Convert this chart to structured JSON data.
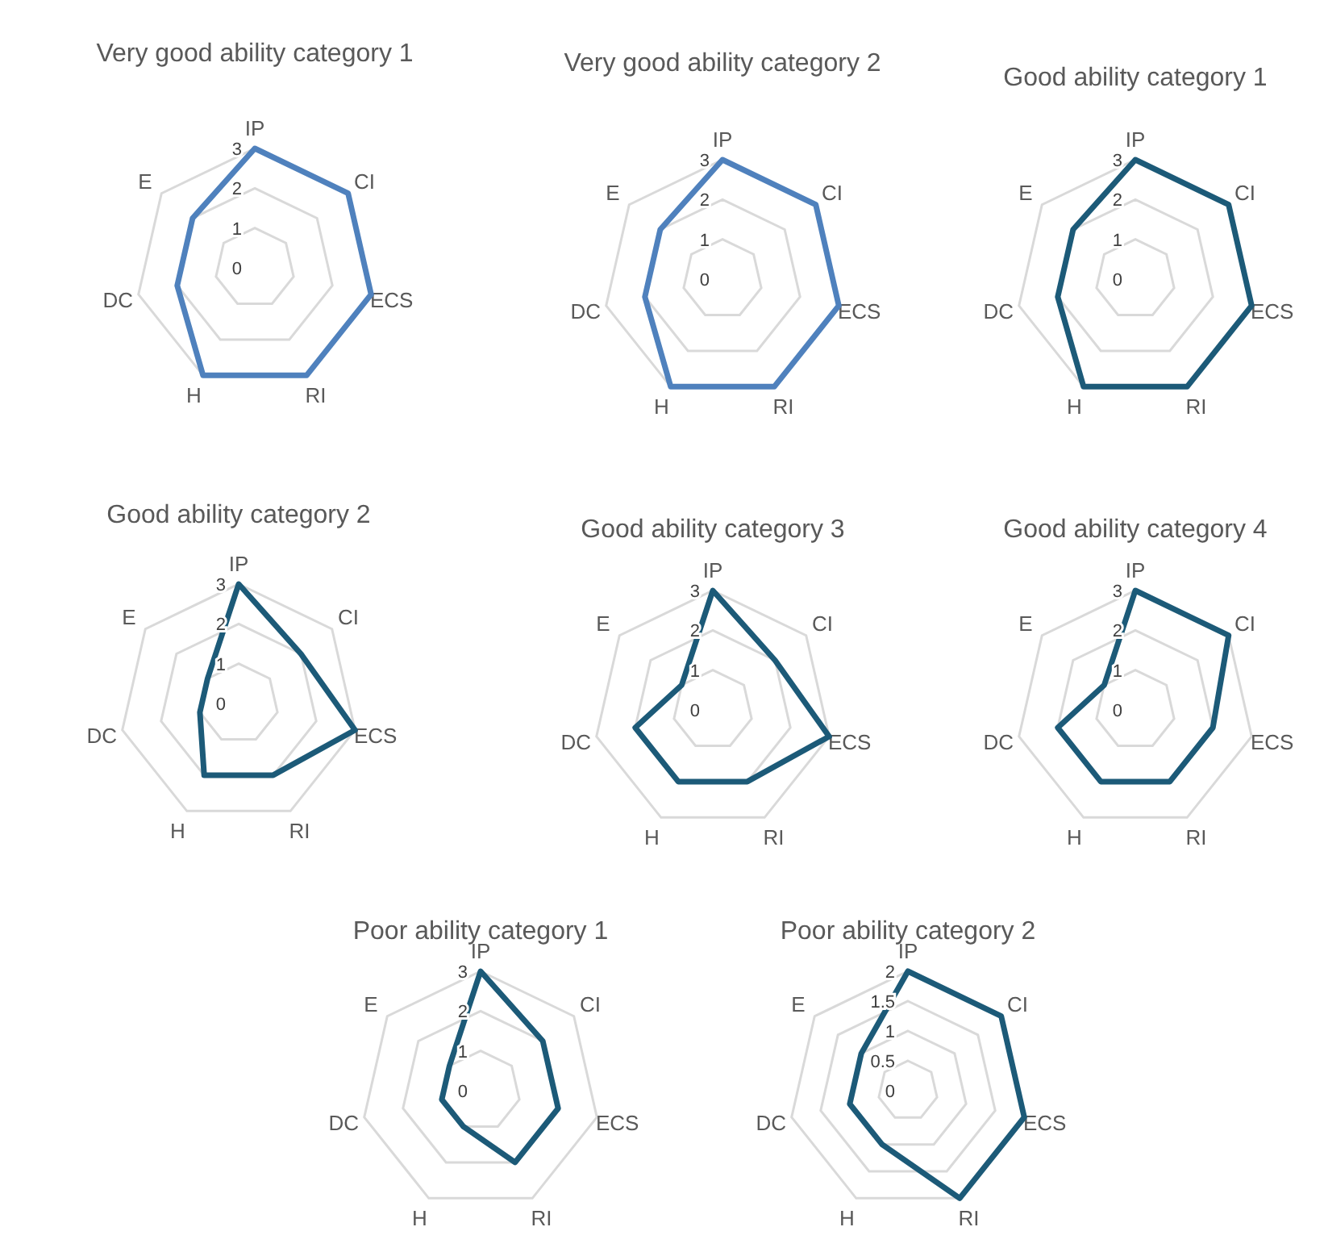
{
  "chart_data": [
    {
      "type": "radar",
      "title": "Very good ability category 1",
      "categories": [
        "IP",
        "CI",
        "ECS",
        "RI",
        "H",
        "DC",
        "E"
      ],
      "ylim": [
        0,
        3
      ],
      "yticks": [
        0,
        1,
        2,
        3
      ],
      "grid": true,
      "series": [
        {
          "color": "#4f81bd",
          "values": [
            3,
            3,
            3,
            3,
            3,
            2,
            2
          ]
        }
      ]
    },
    {
      "type": "radar",
      "title": "Very good ability category 2",
      "categories": [
        "IP",
        "CI",
        "ECS",
        "RI",
        "H",
        "DC",
        "E"
      ],
      "ylim": [
        0,
        3
      ],
      "yticks": [
        0,
        1,
        2,
        3
      ],
      "grid": true,
      "series": [
        {
          "color": "#4f81bd",
          "values": [
            3,
            3,
            3,
            3,
            3,
            2,
            2
          ]
        }
      ]
    },
    {
      "type": "radar",
      "title": "Good ability category  1",
      "categories": [
        "IP",
        "CI",
        "ECS",
        "RI",
        "H",
        "DC",
        "E"
      ],
      "ylim": [
        0,
        3
      ],
      "yticks": [
        0,
        1,
        2,
        3
      ],
      "grid": true,
      "series": [
        {
          "color": "#1c5a78",
          "values": [
            3,
            3,
            3,
            3,
            3,
            2,
            2
          ]
        }
      ]
    },
    {
      "type": "radar",
      "title": "Good ability category 2",
      "categories": [
        "IP",
        "CI",
        "ECS",
        "RI",
        "H",
        "DC",
        "E"
      ],
      "ylim": [
        0,
        3
      ],
      "yticks": [
        0,
        1,
        2,
        3
      ],
      "grid": true,
      "series": [
        {
          "color": "#1c5a78",
          "values": [
            3,
            2,
            3,
            2,
            2,
            1,
            1
          ]
        }
      ]
    },
    {
      "type": "radar",
      "title": "Good ability category 3",
      "categories": [
        "IP",
        "CI",
        "ECS",
        "RI",
        "H",
        "DC",
        "E"
      ],
      "ylim": [
        0,
        3
      ],
      "yticks": [
        0,
        1,
        2,
        3
      ],
      "grid": true,
      "series": [
        {
          "color": "#1c5a78",
          "values": [
            3,
            2,
            3,
            2,
            2,
            2,
            1
          ]
        }
      ]
    },
    {
      "type": "radar",
      "title": "Good ability category 4",
      "categories": [
        "IP",
        "CI",
        "ECS",
        "RI",
        "H",
        "DC",
        "E"
      ],
      "ylim": [
        0,
        3
      ],
      "yticks": [
        0,
        1,
        2,
        3
      ],
      "grid": true,
      "series": [
        {
          "color": "#1c5a78",
          "values": [
            3,
            3,
            2,
            2,
            2,
            2,
            1
          ]
        }
      ]
    },
    {
      "type": "radar",
      "title": "Poor ability category 1",
      "categories": [
        "IP",
        "CI",
        "ECS",
        "RI",
        "H",
        "DC",
        "E"
      ],
      "ylim": [
        0,
        3
      ],
      "yticks": [
        0,
        1,
        2,
        3
      ],
      "grid": true,
      "series": [
        {
          "color": "#1c5a78",
          "values": [
            3,
            2,
            2,
            2,
            1,
            1,
            1
          ]
        }
      ]
    },
    {
      "type": "radar",
      "title": "Poor ability category 2",
      "categories": [
        "IP",
        "CI",
        "ECS",
        "RI",
        "H",
        "DC",
        "E"
      ],
      "ylim": [
        0,
        2
      ],
      "yticks": [
        0,
        0.5,
        1,
        1.5,
        2
      ],
      "grid": true,
      "series": [
        {
          "color": "#1c5a78",
          "values": [
            2,
            2,
            2,
            2,
            1,
            1,
            1
          ]
        }
      ]
    }
  ]
}
